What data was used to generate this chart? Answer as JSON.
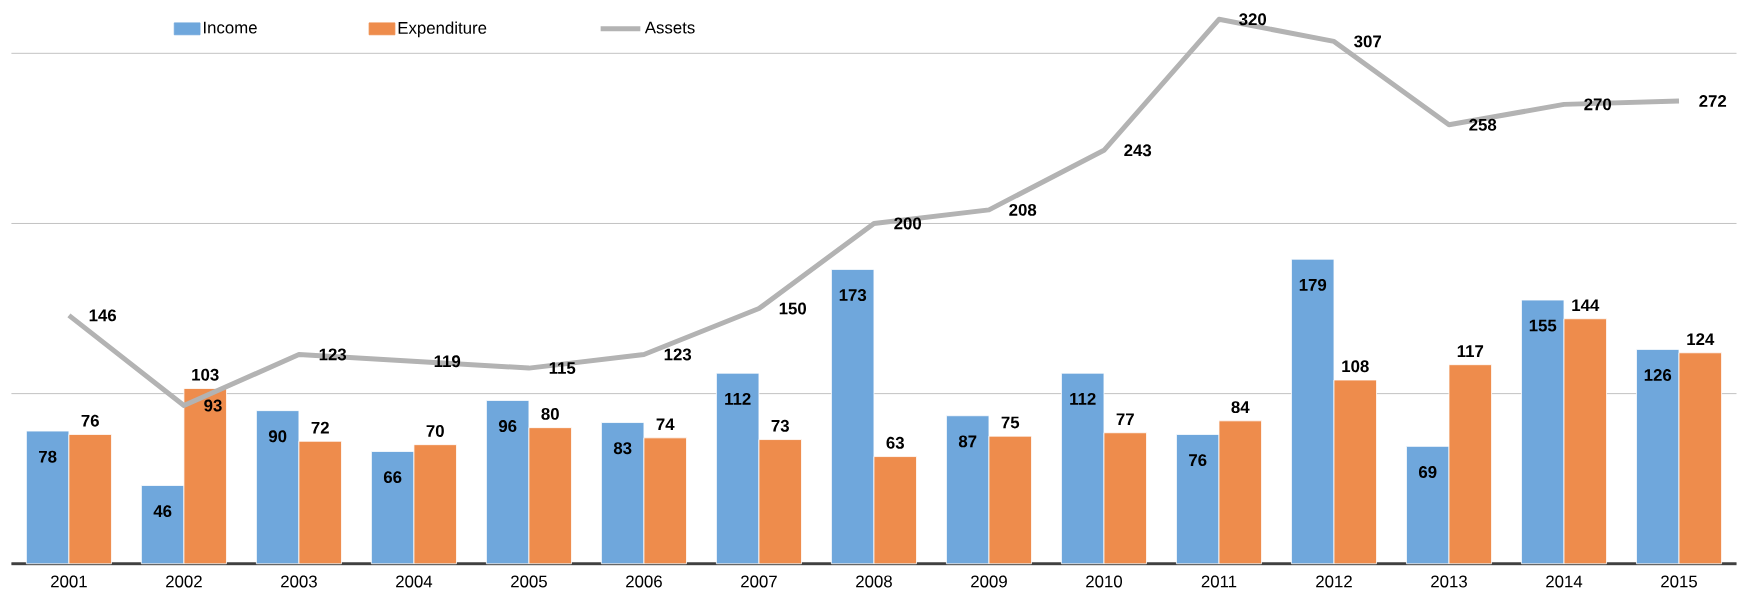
{
  "chart_data": {
    "type": "bar",
    "categories": [
      "2001",
      "2002",
      "2003",
      "2004",
      "2005",
      "2006",
      "2007",
      "2008",
      "2009",
      "2010",
      "2011",
      "2012",
      "2013",
      "2014",
      "2015"
    ],
    "series": [
      {
        "name": "Income",
        "color": "#6fa7dc",
        "values": [
          78,
          46,
          90,
          66,
          96,
          83,
          112,
          173,
          87,
          112,
          76,
          179,
          69,
          155,
          126
        ]
      },
      {
        "name": "Expenditure",
        "color": "#ee8c4c",
        "values": [
          76,
          103,
          72,
          70,
          80,
          74,
          73,
          63,
          75,
          77,
          84,
          108,
          117,
          144,
          124
        ]
      },
      {
        "name": "Assets",
        "type": "line",
        "color": "#b3b3b3",
        "values": [
          146,
          93,
          123,
          119,
          115,
          123,
          150,
          200,
          208,
          243,
          320,
          307,
          258,
          270,
          272
        ]
      }
    ],
    "grid": "y",
    "legend": "top left",
    "data_labels": true
  }
}
